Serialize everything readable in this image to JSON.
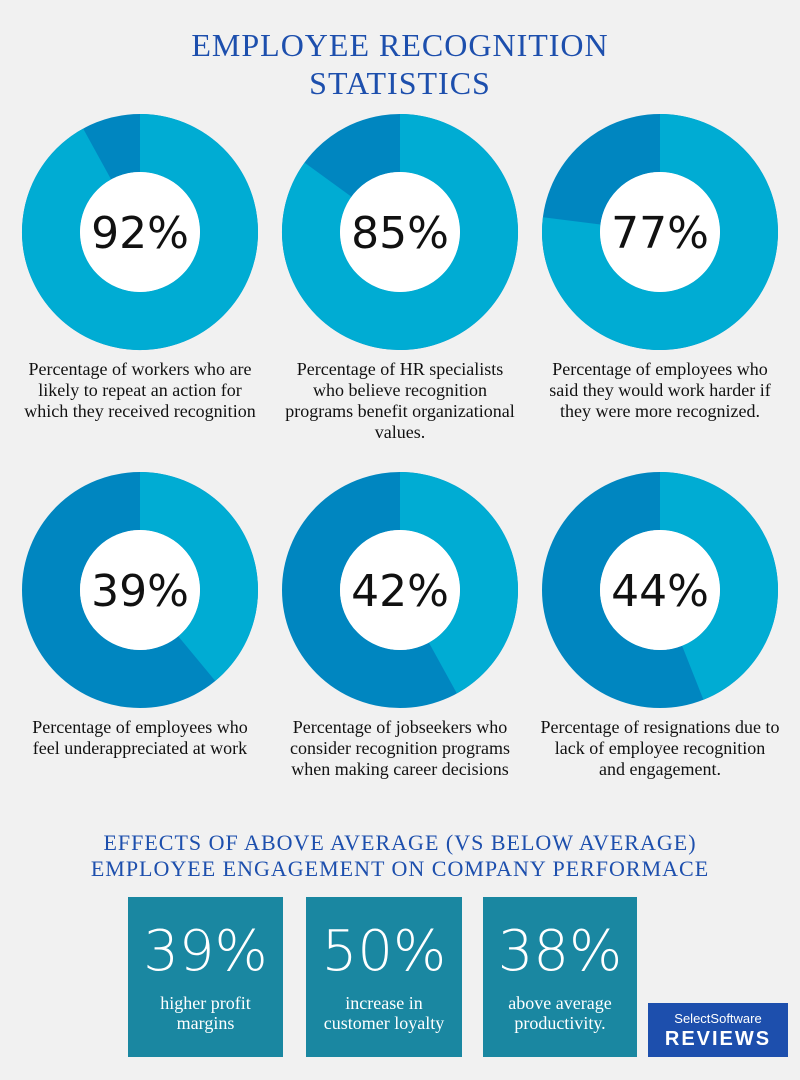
{
  "title": "EMPLOYEE RECOGNITION STATISTICS",
  "chart_data": [
    {
      "type": "donut",
      "values": [
        92
      ],
      "value_labels": [
        "92%"
      ],
      "color": "#00acd3",
      "track_color": "#0086c0",
      "caption": "Percentage of workers who are likely to repeat an action for which they received recognition"
    },
    {
      "type": "donut",
      "values": [
        85
      ],
      "value_labels": [
        "85%"
      ],
      "color": "#00acd3",
      "track_color": "#0086c0",
      "caption": "Percentage of HR specialists who believe recognition programs benefit organizational values."
    },
    {
      "type": "donut",
      "values": [
        77
      ],
      "value_labels": [
        "77%"
      ],
      "color": "#00acd3",
      "track_color": "#0086c0",
      "caption": "Percentage of employees who said they would work harder if they were more recognized."
    },
    {
      "type": "donut",
      "values": [
        39
      ],
      "value_labels": [
        "39%"
      ],
      "color": "#00acd3",
      "track_color": "#0086c0",
      "caption": "Percentage of employees who feel underappreciated at work"
    },
    {
      "type": "donut",
      "values": [
        42
      ],
      "value_labels": [
        "42%"
      ],
      "color": "#00acd3",
      "track_color": "#0086c0",
      "caption": "Percentage of jobseekers who consider recognition programs when making career decisions"
    },
    {
      "type": "donut",
      "values": [
        44
      ],
      "value_labels": [
        "44%"
      ],
      "color": "#00acd3",
      "track_color": "#0086c0",
      "caption": "Percentage of resignations due to lack of employee recognition and engagement."
    }
  ],
  "effects": {
    "title": "EFFECTS OF ABOVE AVERAGE (VS BELOW AVERAGE) EMPLOYEE ENGAGEMENT ON COMPANY PERFORMACE",
    "items": [
      {
        "value": "39%",
        "label": "higher profit margins"
      },
      {
        "value": "50%",
        "label": "increase in customer loyalty"
      },
      {
        "value": "38%",
        "label": "above average productivity."
      }
    ]
  },
  "logo": {
    "top": "SelectSoftware",
    "bottom": "REVIEWS"
  }
}
